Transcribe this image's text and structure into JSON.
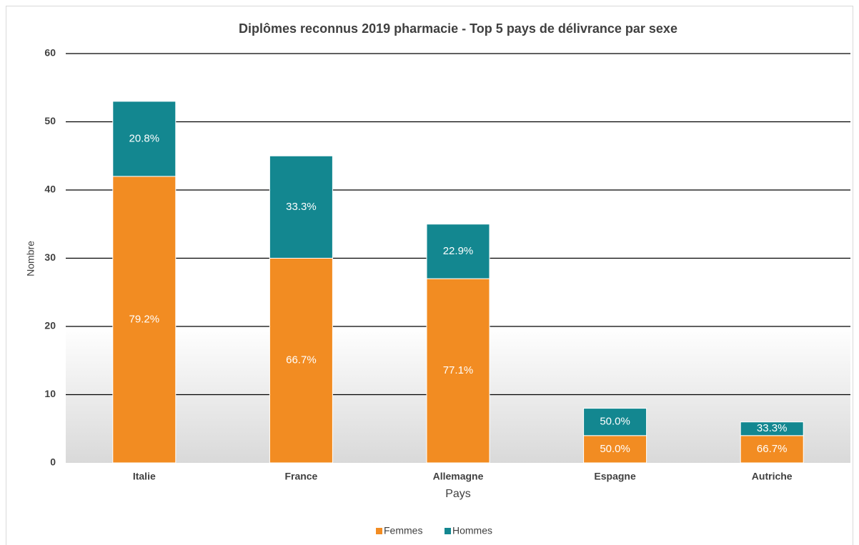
{
  "chart_data": {
    "type": "stacked_bar",
    "title": "Diplômes reconnus 2019 pharmacie - Top 5 pays de délivrance par sexe",
    "x_label": "Pays",
    "y_label": "Nombre",
    "categories": [
      "Italie",
      "France",
      "Allemagne",
      "Espagne",
      "Autriche"
    ],
    "series": [
      {
        "name": "Femmes",
        "color": "#f28c22",
        "values": [
          42,
          30,
          27,
          4,
          4
        ],
        "value_labels": [
          "79.2%",
          "66.7%",
          "77.1%",
          "50.0%",
          "66.7%"
        ]
      },
      {
        "name": "Hommes",
        "color": "#138790",
        "values": [
          11,
          15,
          8,
          4,
          2
        ],
        "value_labels": [
          "20.8%",
          "33.3%",
          "22.9%",
          "50.0%",
          "33.3%"
        ]
      }
    ],
    "ylim": [
      0,
      60
    ],
    "yticks": [
      0,
      10,
      20,
      30,
      40,
      50,
      60
    ],
    "grid": true,
    "legend": "bottom"
  }
}
